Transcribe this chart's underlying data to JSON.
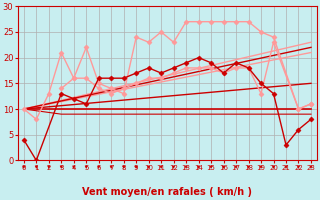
{
  "title": "",
  "xlabel": "Vent moyen/en rafales ( km/h )",
  "bg_color": "#c8eef0",
  "grid_color": "#b0b0b0",
  "xlim": [
    -0.5,
    23.5
  ],
  "ylim": [
    0,
    30
  ],
  "yticks": [
    0,
    5,
    10,
    15,
    20,
    25,
    30
  ],
  "xticks": [
    0,
    1,
    2,
    3,
    4,
    5,
    6,
    7,
    8,
    9,
    10,
    11,
    12,
    13,
    14,
    15,
    16,
    17,
    18,
    19,
    20,
    21,
    22,
    23
  ],
  "lines": [
    {
      "x": [
        0,
        1,
        3,
        4,
        5,
        6,
        7,
        8,
        9,
        10,
        11,
        12,
        13,
        14,
        15,
        16,
        17,
        18,
        19,
        20,
        21,
        22,
        23
      ],
      "y": [
        4,
        0,
        13,
        12,
        11,
        16,
        16,
        16,
        17,
        18,
        17,
        18,
        19,
        20,
        19,
        17,
        19,
        18,
        15,
        13,
        3,
        6,
        8
      ],
      "color": "#cc0000",
      "lw": 1.0,
      "marker": "D",
      "ms": 2.5,
      "zorder": 5
    },
    {
      "x": [
        0,
        1,
        2,
        3,
        4,
        5,
        6,
        7,
        8,
        9,
        10,
        11,
        12,
        13,
        14,
        15,
        16,
        17,
        18,
        19,
        20,
        22,
        23
      ],
      "y": [
        10,
        8,
        13,
        21,
        16,
        22,
        15,
        14,
        13,
        24,
        23,
        25,
        23,
        27,
        27,
        27,
        27,
        27,
        27,
        25,
        24,
        10,
        11
      ],
      "color": "#ff9999",
      "lw": 1.0,
      "marker": "D",
      "ms": 2.5,
      "zorder": 4
    },
    {
      "x": [
        3,
        4,
        5,
        6,
        7,
        8,
        9,
        10,
        11,
        12,
        13,
        14,
        15,
        16,
        17,
        18,
        19,
        20,
        22,
        23
      ],
      "y": [
        14,
        16,
        16,
        14,
        13,
        14,
        15,
        16,
        16,
        17,
        18,
        18,
        18,
        17,
        18,
        18,
        13,
        23,
        10,
        11
      ],
      "color": "#ff9999",
      "lw": 1.0,
      "marker": "D",
      "ms": 2.5,
      "zorder": 4
    },
    {
      "x": [
        0,
        23
      ],
      "y": [
        10,
        23
      ],
      "color": "#ff9999",
      "lw": 1.0,
      "marker": null,
      "ms": 0,
      "zorder": 2
    },
    {
      "x": [
        0,
        23
      ],
      "y": [
        10,
        21
      ],
      "color": "#ff9999",
      "lw": 1.0,
      "marker": null,
      "ms": 0,
      "zorder": 2
    },
    {
      "x": [
        0,
        23
      ],
      "y": [
        10,
        22
      ],
      "color": "#cc0000",
      "lw": 1.0,
      "marker": null,
      "ms": 0,
      "zorder": 3
    },
    {
      "x": [
        0,
        23
      ],
      "y": [
        10,
        15
      ],
      "color": "#cc0000",
      "lw": 1.0,
      "marker": null,
      "ms": 0,
      "zorder": 3
    },
    {
      "x": [
        0,
        3,
        4,
        5,
        6,
        7,
        8,
        9,
        10,
        11,
        12,
        13,
        14,
        15,
        16,
        17,
        18,
        19,
        20,
        21,
        22,
        23
      ],
      "y": [
        10,
        10,
        10,
        10,
        10,
        10,
        10,
        10,
        10,
        10,
        10,
        10,
        10,
        10,
        10,
        10,
        10,
        10,
        10,
        10,
        10,
        10
      ],
      "color": "#cc0000",
      "lw": 1.2,
      "marker": null,
      "ms": 0,
      "zorder": 3
    },
    {
      "x": [
        0,
        3,
        4,
        5,
        6,
        7,
        8,
        9,
        10,
        11,
        12,
        13,
        14,
        15,
        16,
        17,
        18,
        19,
        20,
        21,
        22,
        23
      ],
      "y": [
        10,
        9,
        9,
        9,
        9,
        9,
        9,
        9,
        9,
        9,
        9,
        9,
        9,
        9,
        9,
        9,
        9,
        9,
        9,
        9,
        9,
        9
      ],
      "color": "#cc0000",
      "lw": 0.8,
      "marker": null,
      "ms": 0,
      "zorder": 2
    }
  ],
  "tick_color": "#cc0000",
  "label_color": "#cc0000",
  "xlabel_fontsize": 7,
  "xlabel_bold": true,
  "ytick_fontsize": 6,
  "xtick_fontsize": 5
}
